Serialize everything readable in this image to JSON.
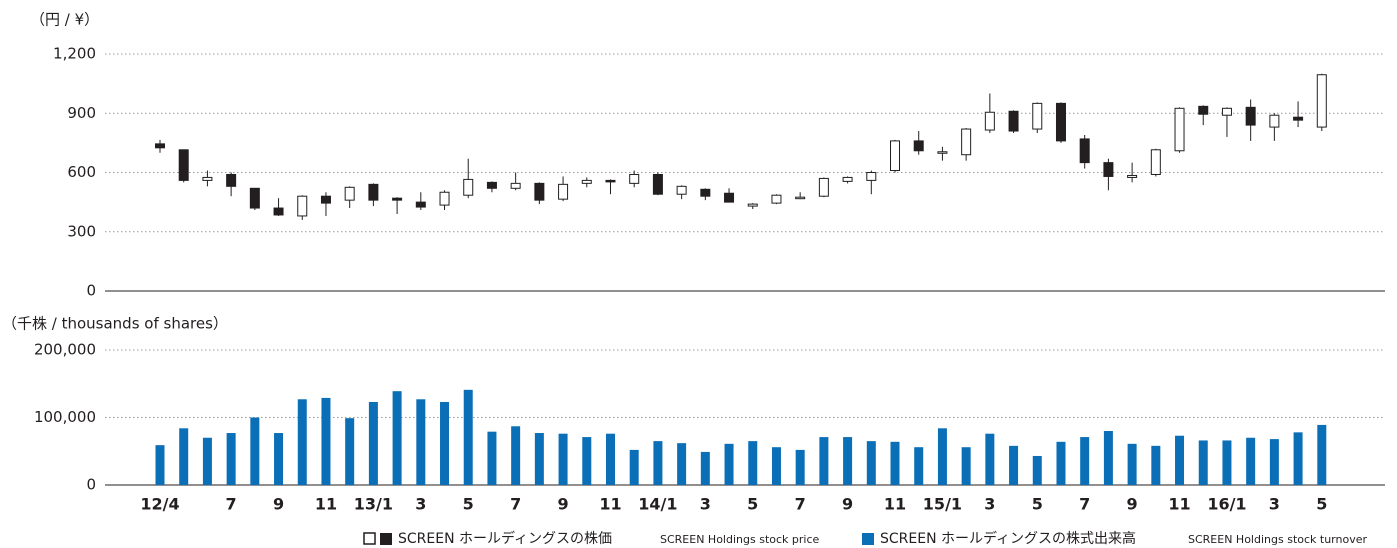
{
  "chart_data": [
    {
      "type": "candlestick",
      "y_label": "（円 / ¥）",
      "series": [
        {
          "name": "SCREEN ホールディングスの株価",
          "name_en": "SCREEN Holdings stock price",
          "up_color": "#ffffff",
          "down_color": "#231f20",
          "open": [
            745,
            715,
            560,
            590,
            520,
            420,
            380,
            480,
            460,
            540,
            470,
            450,
            435,
            485,
            550,
            520,
            545,
            465,
            545,
            560,
            545,
            590,
            490,
            515,
            495,
            430,
            445,
            470,
            480,
            555,
            560,
            610,
            760,
            700,
            690,
            815,
            910,
            820,
            950,
            770,
            650,
            575,
            590,
            710,
            935,
            890,
            930,
            830,
            880,
            830
          ],
          "high": [
            765,
            715,
            610,
            600,
            520,
            470,
            485,
            500,
            530,
            545,
            475,
            500,
            510,
            670,
            555,
            600,
            550,
            580,
            575,
            565,
            610,
            600,
            535,
            520,
            520,
            445,
            490,
            500,
            575,
            580,
            610,
            765,
            810,
            730,
            825,
            1000,
            915,
            955,
            955,
            790,
            670,
            650,
            720,
            930,
            940,
            930,
            970,
            900,
            960,
            1100
          ],
          "low": [
            700,
            550,
            530,
            480,
            410,
            380,
            360,
            380,
            420,
            430,
            390,
            410,
            410,
            470,
            500,
            510,
            440,
            455,
            525,
            490,
            525,
            485,
            465,
            460,
            450,
            415,
            440,
            465,
            475,
            545,
            490,
            600,
            690,
            660,
            660,
            800,
            800,
            800,
            750,
            620,
            510,
            550,
            580,
            700,
            840,
            780,
            760,
            760,
            830,
            810
          ],
          "close": [
            725,
            560,
            575,
            530,
            420,
            385,
            480,
            445,
            525,
            460,
            460,
            425,
            500,
            565,
            520,
            545,
            460,
            540,
            560,
            555,
            590,
            490,
            530,
            480,
            450,
            440,
            485,
            475,
            570,
            575,
            600,
            760,
            710,
            705,
            820,
            905,
            810,
            950,
            760,
            650,
            580,
            585,
            715,
            925,
            895,
            925,
            840,
            890,
            865,
            1095
          ]
        }
      ],
      "ylim": [
        0,
        1200
      ],
      "yticks": [
        0,
        300,
        600,
        900,
        {
          "value": 1200,
          "label": "1,200"
        }
      ],
      "grid": true
    },
    {
      "type": "bar",
      "y_label": "（千株 / thousands of shares）",
      "categories": [
        "12/4",
        null,
        null,
        "7",
        null,
        "9",
        null,
        "11",
        null,
        "13/1",
        null,
        "3",
        null,
        "5",
        null,
        "7",
        null,
        "9",
        null,
        "11",
        null,
        "14/1",
        null,
        "3",
        null,
        "5",
        null,
        "7",
        null,
        "9",
        null,
        "11",
        null,
        "15/1",
        null,
        "3",
        null,
        "5",
        null,
        "7",
        null,
        "9",
        null,
        "11",
        null,
        "16/1",
        null,
        "3",
        null,
        "5"
      ],
      "series": [
        {
          "name": "SCREEN ホールディングスの株式出来高",
          "name_en": "SCREEN Holdings stock turnover",
          "color": "#0a6fb6",
          "values": [
            59000,
            84000,
            70000,
            77000,
            100000,
            77000,
            127000,
            129000,
            99000,
            123000,
            139000,
            127000,
            123000,
            141000,
            79000,
            87000,
            77000,
            76000,
            71000,
            76000,
            52000,
            65000,
            62000,
            49000,
            61000,
            65000,
            56000,
            52000,
            71000,
            71000,
            65000,
            64000,
            56000,
            84000,
            56000,
            76000,
            58000,
            43000,
            64000,
            71000,
            80000,
            61000,
            58000,
            73000,
            66000,
            66000,
            70000,
            68000,
            78000,
            89000
          ]
        }
      ],
      "ylim": [
        0,
        200000
      ],
      "yticks": [
        0,
        {
          "value": 100000,
          "label": "100,000"
        },
        {
          "value": 200000,
          "label": "200,000"
        }
      ],
      "grid": true
    }
  ]
}
